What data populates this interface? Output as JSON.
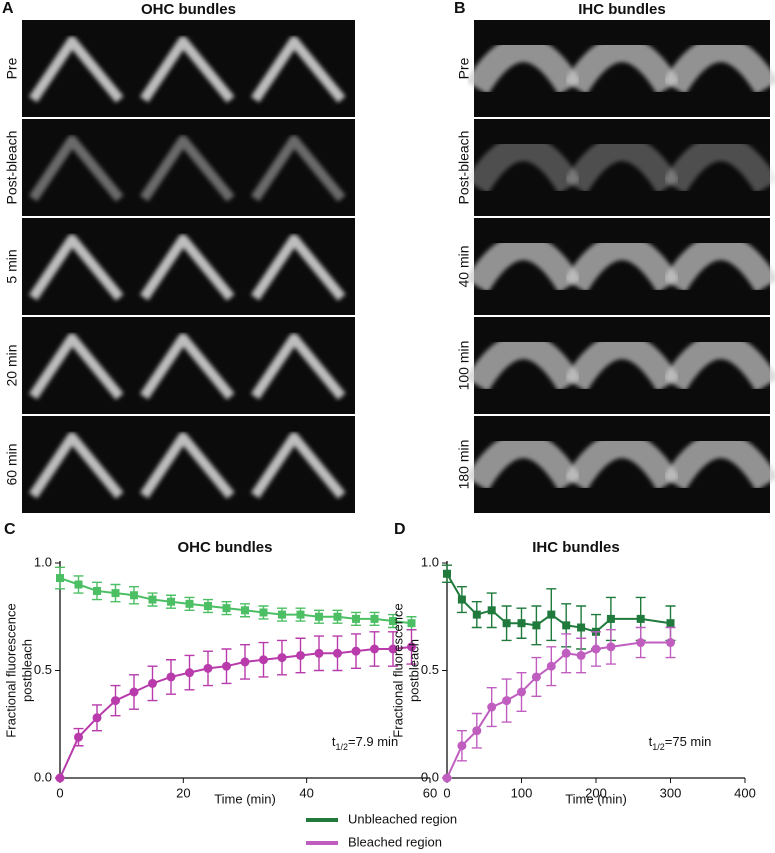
{
  "image_panels": [
    {
      "letter": "A",
      "title": "OHC bundles",
      "rows": [
        "Pre",
        "Post-bleach",
        "5 min",
        "20 min",
        "60 min"
      ]
    },
    {
      "letter": "B",
      "title": "IHC bundles",
      "rows": [
        "Pre",
        "Post-bleach",
        "40 min",
        "100 min",
        "180 min"
      ]
    }
  ],
  "chart_data": [
    {
      "type": "line",
      "letter": "C",
      "title": "OHC bundles",
      "x_label": "Time (min)",
      "y_label": [
        "Fractional fluorescence",
        "postbleach"
      ],
      "annotation": [
        "t",
        "1/2",
        "=7.9 min"
      ],
      "x": [
        0,
        3,
        6,
        9,
        12,
        15,
        18,
        21,
        24,
        27,
        30,
        33,
        36,
        39,
        42,
        45,
        48,
        51,
        54,
        57
      ],
      "series": [
        {
          "name": "Unbleached region",
          "color": "#4cbf64",
          "marker": "square",
          "values": [
            0.93,
            0.9,
            0.87,
            0.86,
            0.85,
            0.83,
            0.82,
            0.81,
            0.8,
            0.79,
            0.78,
            0.77,
            0.76,
            0.76,
            0.75,
            0.75,
            0.74,
            0.74,
            0.73,
            0.72
          ],
          "errors": [
            0.05,
            0.04,
            0.04,
            0.04,
            0.04,
            0.03,
            0.03,
            0.03,
            0.03,
            0.03,
            0.03,
            0.03,
            0.03,
            0.03,
            0.03,
            0.03,
            0.03,
            0.03,
            0.03,
            0.03
          ]
        },
        {
          "name": "Bleached region",
          "color": "#b83aab",
          "marker": "circle",
          "values": [
            0,
            0.19,
            0.28,
            0.36,
            0.4,
            0.44,
            0.47,
            0.49,
            0.51,
            0.52,
            0.54,
            0.55,
            0.56,
            0.57,
            0.58,
            0.58,
            0.59,
            0.6,
            0.6,
            0.61
          ],
          "errors": [
            0,
            0.04,
            0.06,
            0.07,
            0.08,
            0.08,
            0.08,
            0.08,
            0.08,
            0.08,
            0.08,
            0.08,
            0.08,
            0.08,
            0.08,
            0.08,
            0.08,
            0.08,
            0.08,
            0.08
          ]
        }
      ],
      "xlim": [
        0,
        60
      ],
      "xticks": [
        0,
        20,
        40,
        60
      ],
      "ylim": [
        0,
        1
      ],
      "yticks": [
        {
          "value": 0,
          "label": "0.0"
        },
        0.5,
        {
          "value": 1,
          "label": "1.0"
        }
      ]
    },
    {
      "type": "line",
      "letter": "D",
      "title": "IHC bundles",
      "x_label": "Time (min)",
      "y_label": [
        "Fractional fluorescence",
        "postbleach"
      ],
      "annotation": [
        "t",
        "1/2",
        "=75 min"
      ],
      "x": [
        0,
        20,
        40,
        60,
        80,
        100,
        120,
        140,
        160,
        180,
        200,
        220,
        260,
        300
      ],
      "series": [
        {
          "name": "Unbleached region",
          "color": "#1f7a3c",
          "marker": "square",
          "values": [
            0.95,
            0.83,
            0.76,
            0.78,
            0.72,
            0.72,
            0.71,
            0.76,
            0.71,
            0.7,
            0.68,
            0.74,
            0.74,
            0.72
          ],
          "errors": [
            0.04,
            0.06,
            0.06,
            0.08,
            0.08,
            0.07,
            0.09,
            0.12,
            0.1,
            0.1,
            0.08,
            0.1,
            0.1,
            0.08
          ]
        },
        {
          "name": "Bleached region",
          "color": "#c05ec0",
          "marker": "circle",
          "values": [
            0,
            0.15,
            0.22,
            0.33,
            0.36,
            0.4,
            0.47,
            0.52,
            0.58,
            0.57,
            0.6,
            0.61,
            0.63,
            0.63
          ],
          "errors": [
            0,
            0.07,
            0.08,
            0.09,
            0.1,
            0.09,
            0.09,
            0.09,
            0.09,
            0.08,
            0.08,
            0.08,
            0.07,
            0.07
          ]
        }
      ],
      "xlim": [
        0,
        400
      ],
      "xticks": [
        0,
        100,
        200,
        300,
        400
      ],
      "ylim": [
        0,
        1
      ],
      "yticks": [
        {
          "value": 0,
          "label": "0.0"
        },
        0.5,
        {
          "value": 1,
          "label": "1.0"
        }
      ]
    }
  ]
}
